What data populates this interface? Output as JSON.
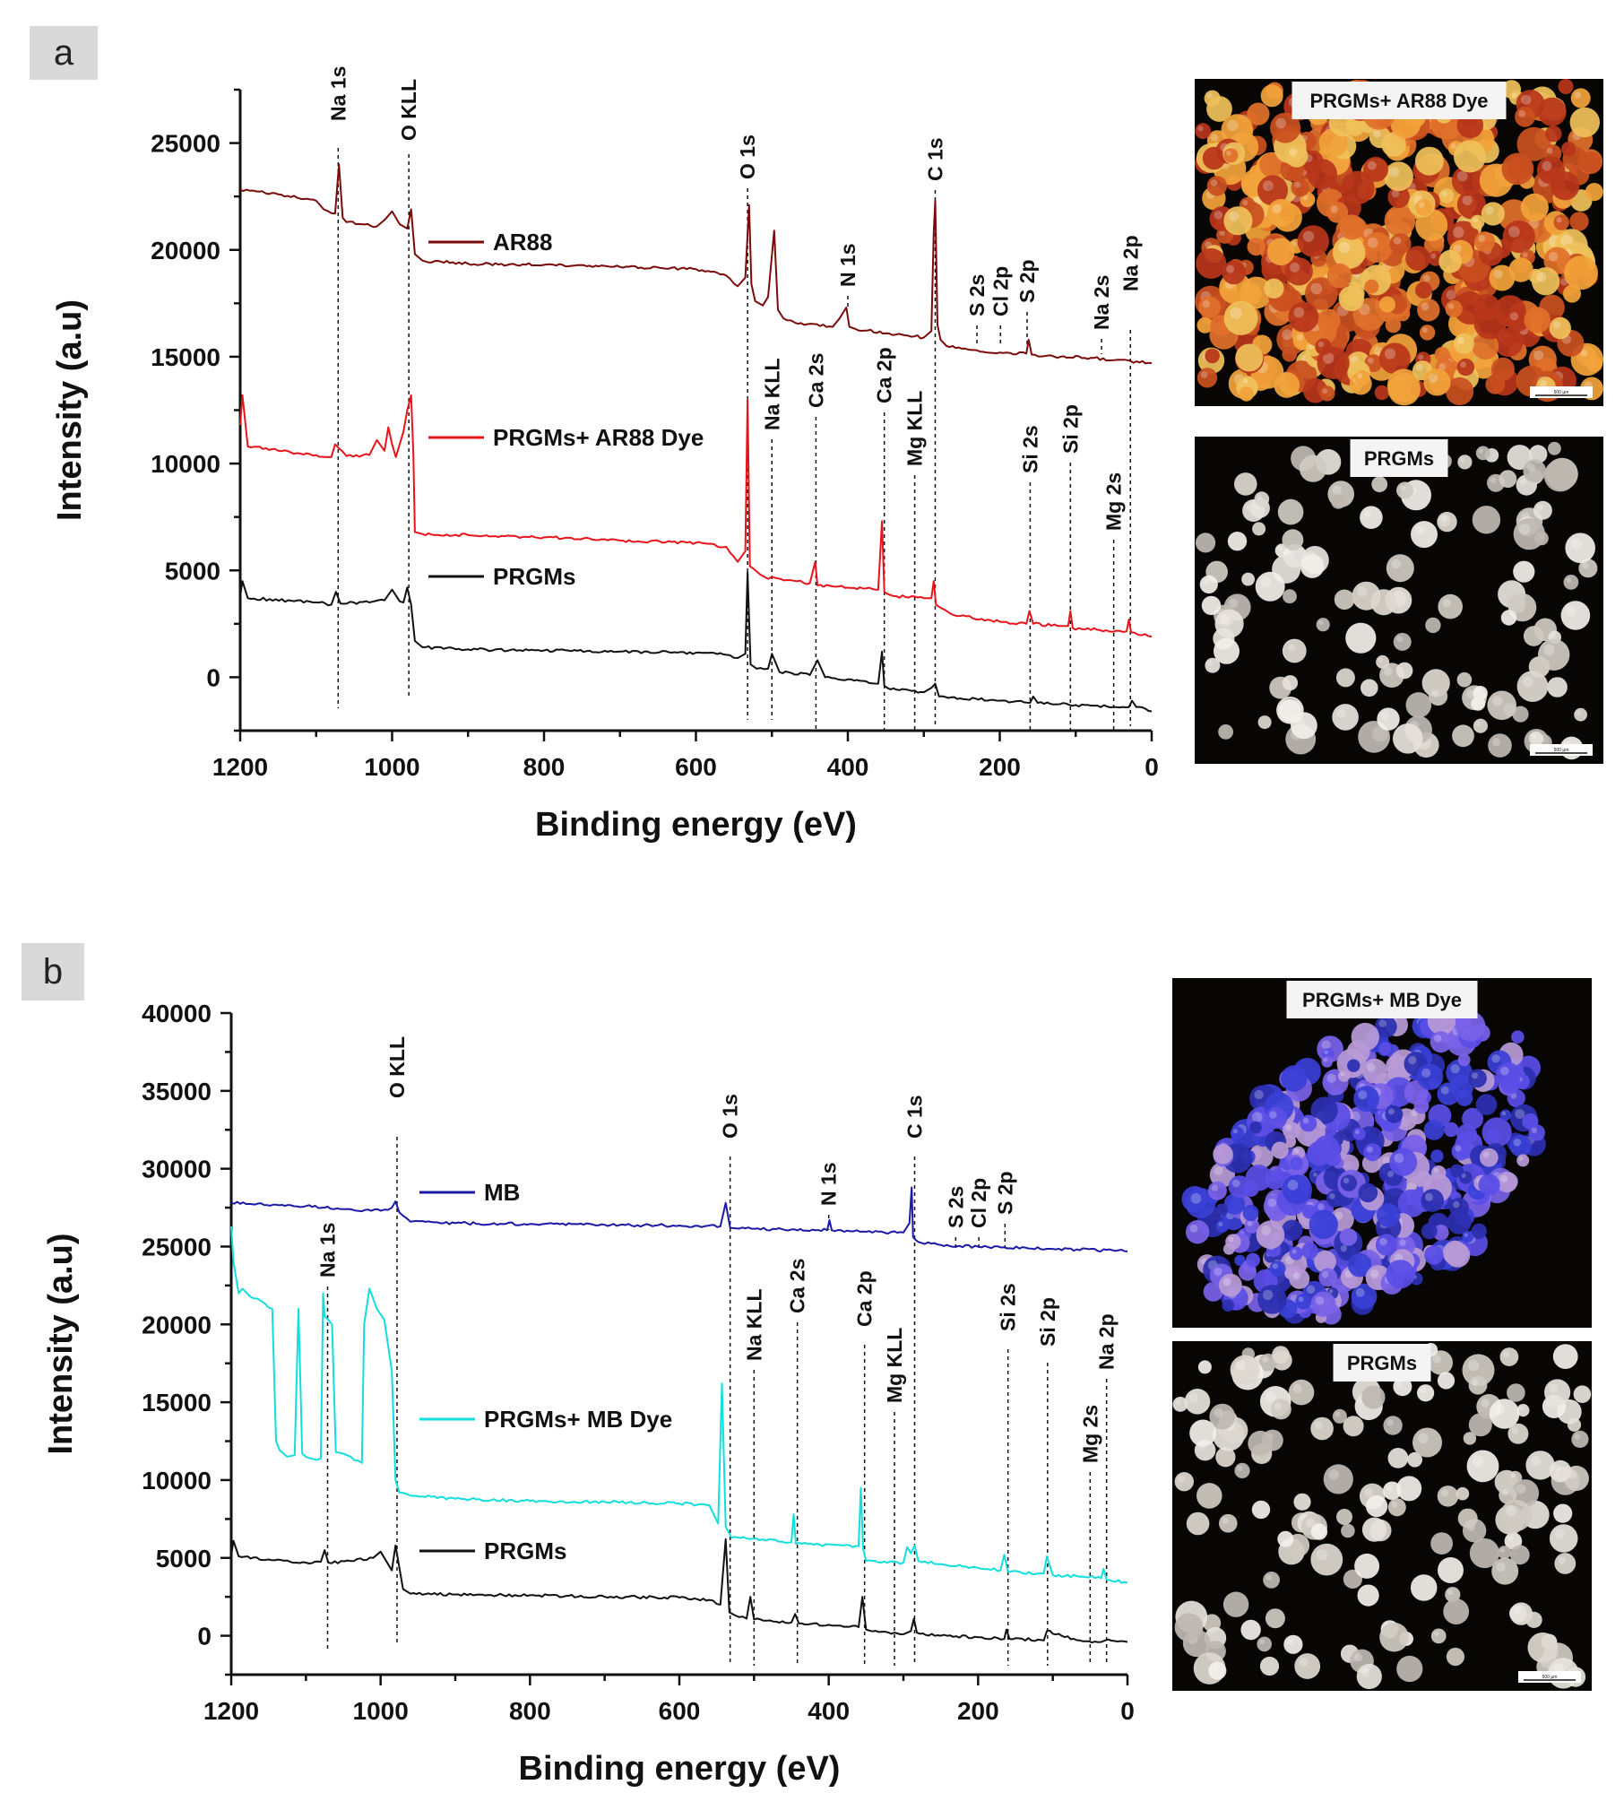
{
  "panels": {
    "a": {
      "tag": "a"
    },
    "b": {
      "tag": "b"
    }
  },
  "chart_data": [
    {
      "id": "a",
      "type": "line",
      "xlabel": "Binding energy (eV)",
      "ylabel": "Intensity (a.u)",
      "xlim": [
        1200,
        0
      ],
      "ylim": [
        -2500,
        27500
      ],
      "x_reversed": true,
      "xticks": [
        1200,
        1000,
        800,
        600,
        400,
        200,
        0
      ],
      "yticks": [
        0,
        5000,
        10000,
        15000,
        20000,
        25000
      ],
      "series": [
        {
          "name": "AR88",
          "color": "#7b0a0a",
          "x": [
            1200,
            1150,
            1100,
            1090,
            1075,
            1070,
            1065,
            1060,
            1040,
            1020,
            1010,
            1000,
            990,
            980,
            975,
            970,
            960,
            900,
            800,
            700,
            600,
            560,
            545,
            535,
            530,
            527,
            522,
            512,
            505,
            497,
            492,
            485,
            470,
            420,
            402,
            398,
            390,
            350,
            300,
            290,
            287,
            285,
            282,
            278,
            270,
            230,
            200,
            165,
            162,
            158,
            120,
            80,
            0
          ],
          "y": [
            22800,
            22600,
            22300,
            21900,
            21700,
            24000,
            21500,
            21300,
            21200,
            21100,
            21400,
            21800,
            21200,
            21000,
            21900,
            19800,
            19500,
            19350,
            19300,
            19200,
            19100,
            18800,
            18300,
            18700,
            22100,
            18400,
            17600,
            17400,
            17800,
            20900,
            17200,
            16800,
            16600,
            16400,
            17300,
            16400,
            16300,
            16100,
            15900,
            16200,
            20800,
            22300,
            16500,
            15800,
            15500,
            15300,
            15200,
            15150,
            15800,
            15100,
            15000,
            14950,
            14700
          ]
        },
        {
          "name": "PRGMs+ AR88 Dye",
          "color": "#e8141c",
          "x": [
            1200,
            1197,
            1190,
            1150,
            1100,
            1080,
            1075,
            1060,
            1030,
            1020,
            1010,
            1005,
            1000,
            995,
            985,
            980,
            975,
            972,
            970,
            960,
            900,
            800,
            700,
            600,
            560,
            545,
            535,
            532,
            529,
            525,
            515,
            505,
            500,
            480,
            450,
            443,
            440,
            420,
            380,
            360,
            355,
            352,
            348,
            340,
            300,
            290,
            287,
            284,
            280,
            260,
            200,
            165,
            161,
            156,
            120,
            110,
            107,
            104,
            60,
            33,
            30,
            27,
            0
          ],
          "y": [
            11800,
            13200,
            10800,
            10600,
            10400,
            10300,
            10900,
            10350,
            10400,
            11100,
            10600,
            11700,
            10900,
            10300,
            11500,
            12500,
            13200,
            10500,
            6800,
            6700,
            6650,
            6550,
            6400,
            6300,
            6100,
            5400,
            5900,
            13000,
            5200,
            5100,
            4800,
            4600,
            4700,
            4550,
            4400,
            5400,
            4300,
            4250,
            4150,
            4100,
            7300,
            4000,
            3900,
            3800,
            3700,
            3700,
            4500,
            3400,
            3300,
            2900,
            2600,
            2500,
            3100,
            2500,
            2400,
            2400,
            3100,
            2300,
            2200,
            2150,
            2700,
            2100,
            1900
          ]
        },
        {
          "name": "PRGMs",
          "color": "#111111",
          "x": [
            1200,
            1197,
            1190,
            1100,
            1080,
            1074,
            1068,
            1030,
            1010,
            1000,
            990,
            985,
            980,
            975,
            970,
            960,
            900,
            800,
            700,
            600,
            560,
            545,
            535,
            532,
            528,
            520,
            505,
            500,
            490,
            450,
            440,
            430,
            400,
            360,
            355,
            352,
            348,
            320,
            300,
            290,
            285,
            280,
            200,
            160,
            156,
            150,
            100,
            30,
            26,
            20,
            0
          ],
          "y": [
            3800,
            4500,
            3700,
            3500,
            3400,
            4000,
            3450,
            3500,
            3600,
            4100,
            3550,
            3500,
            4200,
            3400,
            1700,
            1400,
            1300,
            1250,
            1200,
            1150,
            1050,
            900,
            1100,
            4900,
            600,
            400,
            400,
            1100,
            250,
            100,
            800,
            0,
            -100,
            -300,
            1200,
            -400,
            -500,
            -600,
            -700,
            -500,
            -300,
            -900,
            -1100,
            -1200,
            -900,
            -1200,
            -1300,
            -1400,
            -1100,
            -1400,
            -1600
          ]
        }
      ],
      "peak_labels": [
        {
          "text": "Na 1s",
          "x": 1071
        },
        {
          "text": "O KLL",
          "x": 978
        },
        {
          "text": "O 1s",
          "x": 532
        },
        {
          "text": "Na KLL",
          "x": 500
        },
        {
          "text": "N 1s",
          "x": 400
        },
        {
          "text": "Ca 2s",
          "x": 442
        },
        {
          "text": "Ca 2p",
          "x": 352
        },
        {
          "text": "Mg KLL",
          "x": 312
        },
        {
          "text": "C 1s",
          "x": 285
        },
        {
          "text": "S 2s",
          "x": 230
        },
        {
          "text": "Cl 2p",
          "x": 199
        },
        {
          "text": "S 2p",
          "x": 164
        },
        {
          "text": "Si 2s",
          "x": 160
        },
        {
          "text": "Si 2p",
          "x": 107
        },
        {
          "text": "Na 2s",
          "x": 66
        },
        {
          "text": "Mg 2s",
          "x": 50
        },
        {
          "text": "Na 2p",
          "x": 28
        }
      ],
      "micrographs": [
        {
          "label": "PRGMs+ AR88 Dye",
          "scale": "500 µm",
          "palette": [
            "#e0702a",
            "#c9501f",
            "#f2a33a",
            "#b8361a",
            "#efc15a"
          ]
        },
        {
          "label": "PRGMs",
          "scale": "500 µm",
          "palette": [
            "#e6e2dc",
            "#cfcac2",
            "#f2efea",
            "#bdb8b0",
            "#ddd7cf"
          ]
        }
      ]
    },
    {
      "id": "b",
      "type": "line",
      "xlabel": "Binding energy (eV)",
      "ylabel": "Intensity (a.u)",
      "xlim": [
        1200,
        0
      ],
      "ylim": [
        -2500,
        40000
      ],
      "x_reversed": true,
      "xticks": [
        1200,
        1000,
        800,
        600,
        400,
        200,
        0
      ],
      "yticks": [
        0,
        5000,
        10000,
        15000,
        20000,
        25000,
        30000,
        35000,
        40000
      ],
      "series": [
        {
          "name": "MB",
          "color": "#1a1aa6",
          "x": [
            1200,
            1100,
            1050,
            1000,
            985,
            980,
            975,
            960,
            900,
            800,
            700,
            600,
            545,
            538,
            532,
            520,
            450,
            402,
            399,
            396,
            350,
            300,
            292,
            289,
            287,
            283,
            280,
            250,
            200,
            165,
            100,
            0
          ],
          "y": [
            27800,
            27600,
            27400,
            27300,
            27500,
            27900,
            27200,
            26600,
            26500,
            26450,
            26400,
            26350,
            26300,
            27800,
            26200,
            26150,
            26100,
            26050,
            26700,
            26050,
            25950,
            25900,
            26500,
            28800,
            25600,
            25400,
            25300,
            25100,
            25000,
            24950,
            24850,
            24700
          ]
        },
        {
          "name": "PRGMs+ MB Dye",
          "color": "#12dede",
          "x": [
            1200,
            1197,
            1190,
            1185,
            1175,
            1160,
            1145,
            1140,
            1135,
            1125,
            1115,
            1110,
            1105,
            1100,
            1095,
            1085,
            1080,
            1077,
            1075,
            1070,
            1065,
            1060,
            1050,
            1040,
            1025,
            1022,
            1015,
            1005,
            995,
            985,
            980,
            975,
            960,
            900,
            800,
            700,
            600,
            560,
            548,
            543,
            538,
            530,
            510,
            480,
            450,
            447,
            444,
            420,
            380,
            360,
            357,
            354,
            350,
            330,
            300,
            295,
            290,
            285,
            280,
            250,
            200,
            170,
            165,
            160,
            120,
            112,
            108,
            100,
            60,
            35,
            32,
            28,
            0
          ],
          "y": [
            26300,
            24000,
            22000,
            22300,
            21800,
            21500,
            21000,
            12500,
            11900,
            11500,
            11600,
            21000,
            11700,
            11500,
            11400,
            11300,
            11400,
            22000,
            20500,
            20300,
            20000,
            11800,
            11700,
            11500,
            11100,
            20000,
            22300,
            21000,
            20300,
            17000,
            10000,
            9200,
            9000,
            8800,
            8650,
            8600,
            8500,
            8400,
            7200,
            16200,
            7000,
            6300,
            6250,
            6200,
            6000,
            7800,
            5900,
            5850,
            5800,
            5750,
            9500,
            5600,
            4800,
            4700,
            4700,
            5700,
            5300,
            5800,
            4800,
            4600,
            4350,
            4200,
            5200,
            4100,
            4000,
            4000,
            5100,
            3900,
            3800,
            3700,
            4300,
            3600,
            3400
          ]
        },
        {
          "name": "PRGMs",
          "color": "#111111",
          "x": [
            1200,
            1197,
            1190,
            1150,
            1100,
            1080,
            1075,
            1070,
            1040,
            1010,
            1000,
            990,
            985,
            980,
            975,
            970,
            960,
            900,
            800,
            700,
            600,
            560,
            545,
            538,
            533,
            525,
            510,
            505,
            500,
            470,
            450,
            445,
            440,
            400,
            360,
            355,
            350,
            320,
            300,
            290,
            286,
            282,
            250,
            200,
            165,
            162,
            158,
            120,
            112,
            108,
            60,
            35,
            30,
            0
          ],
          "y": [
            5200,
            6100,
            5100,
            4900,
            4700,
            4750,
            5500,
            4700,
            4800,
            5000,
            5400,
            4600,
            4200,
            5800,
            4400,
            3000,
            2700,
            2650,
            2600,
            2500,
            2450,
            2300,
            2000,
            6200,
            1500,
            1300,
            1100,
            2500,
            1050,
            900,
            850,
            1400,
            800,
            700,
            550,
            2500,
            400,
            200,
            100,
            300,
            1100,
            200,
            0,
            -100,
            -200,
            400,
            -200,
            -250,
            -300,
            300,
            -350,
            -400,
            -300,
            -400
          ]
        }
      ],
      "peak_labels": [
        {
          "text": "Na 1s",
          "x": 1071
        },
        {
          "text": "O KLL",
          "x": 978
        },
        {
          "text": "O 1s",
          "x": 532
        },
        {
          "text": "Na KLL",
          "x": 500
        },
        {
          "text": "N 1s",
          "x": 400
        },
        {
          "text": "Ca 2s",
          "x": 442
        },
        {
          "text": "Ca 2p",
          "x": 352
        },
        {
          "text": "Mg KLL",
          "x": 312
        },
        {
          "text": "C 1s",
          "x": 285
        },
        {
          "text": "S 2s",
          "x": 230
        },
        {
          "text": "Cl 2p",
          "x": 199
        },
        {
          "text": "S 2p",
          "x": 164
        },
        {
          "text": "Si 2s",
          "x": 160
        },
        {
          "text": "Si 2p",
          "x": 107
        },
        {
          "text": "Mg 2s",
          "x": 50
        },
        {
          "text": "Na 2p",
          "x": 28
        }
      ],
      "micrographs": [
        {
          "label": "PRGMs+ MB Dye",
          "scale": "",
          "palette": [
            "#3a3fd6",
            "#5a4ee6",
            "#7a62e8",
            "#2c2fb0",
            "#b89ad6"
          ]
        },
        {
          "label": "PRGMs",
          "scale": "500 µm",
          "palette": [
            "#e6e2dc",
            "#cfcac2",
            "#f2efea",
            "#bdb8b0",
            "#ddd7cf"
          ]
        }
      ]
    }
  ]
}
